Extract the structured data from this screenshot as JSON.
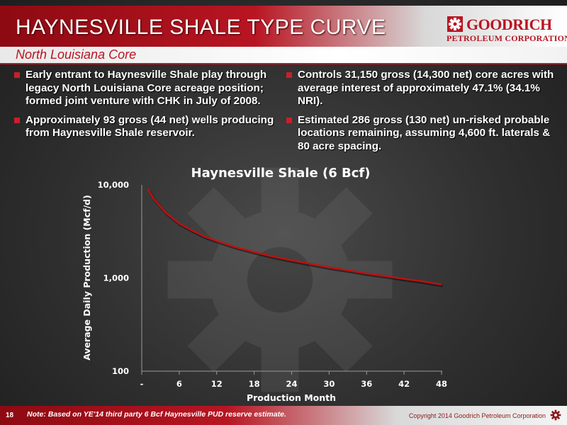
{
  "header": {
    "title": "HAYNESVILLE SHALE TYPE CURVE",
    "subtitle": "North Louisiana Core"
  },
  "logo": {
    "name_line1": "GOODRICH",
    "name_line2": "PETROLEUM CORPORATION",
    "icon": "goodrich-gear-logo"
  },
  "bullets_left": [
    "Early entrant to Haynesville Shale play through legacy North Louisiana Core acreage position; formed joint venture with CHK in July of 2008.",
    "Approximately 93 gross (44 net) wells producing from Haynesville Shale reservoir."
  ],
  "bullets_right": [
    "Controls 31,150 gross (14,300 net) core acres with average interest of approximately 47.1% (34.1% NRI).",
    "Estimated 286 gross (130 net) un-risked probable locations remaining, assuming 4,600 ft. laterals & 80 acre spacing."
  ],
  "chart_data": {
    "type": "line",
    "title": "Haynesville  Shale (6 Bcf)",
    "xlabel": "Production Month",
    "ylabel": "Average Daily Production (Mcf/d)",
    "y_scale": "log",
    "ylim": [
      100,
      10000
    ],
    "xlim": [
      0,
      48
    ],
    "x_tick_labels": [
      "-",
      "6",
      "12",
      "18",
      "24",
      "30",
      "36",
      "42",
      "48"
    ],
    "y_tick_labels": [
      "100",
      "1,000",
      "10,000"
    ],
    "grid": false,
    "series_color": "#c01010",
    "series": [
      {
        "x": [
          1,
          2,
          3,
          4,
          6,
          8,
          10,
          12,
          15,
          18,
          21,
          24,
          27,
          30,
          33,
          36,
          39,
          42,
          45,
          48
        ],
        "y": [
          9000,
          7000,
          5800,
          4900,
          3850,
          3250,
          2800,
          2500,
          2150,
          1900,
          1700,
          1550,
          1420,
          1300,
          1210,
          1120,
          1050,
          980,
          920,
          850
        ]
      }
    ]
  },
  "footer": {
    "page_number": "18",
    "note": "Note: Based on YE'14 third party 6 Bcf Haynesville PUD reserve estimate.",
    "copyright": "Copyright 2014 Goodrich Petroleum Corporation",
    "icon": "goodrich-gear-icon"
  }
}
